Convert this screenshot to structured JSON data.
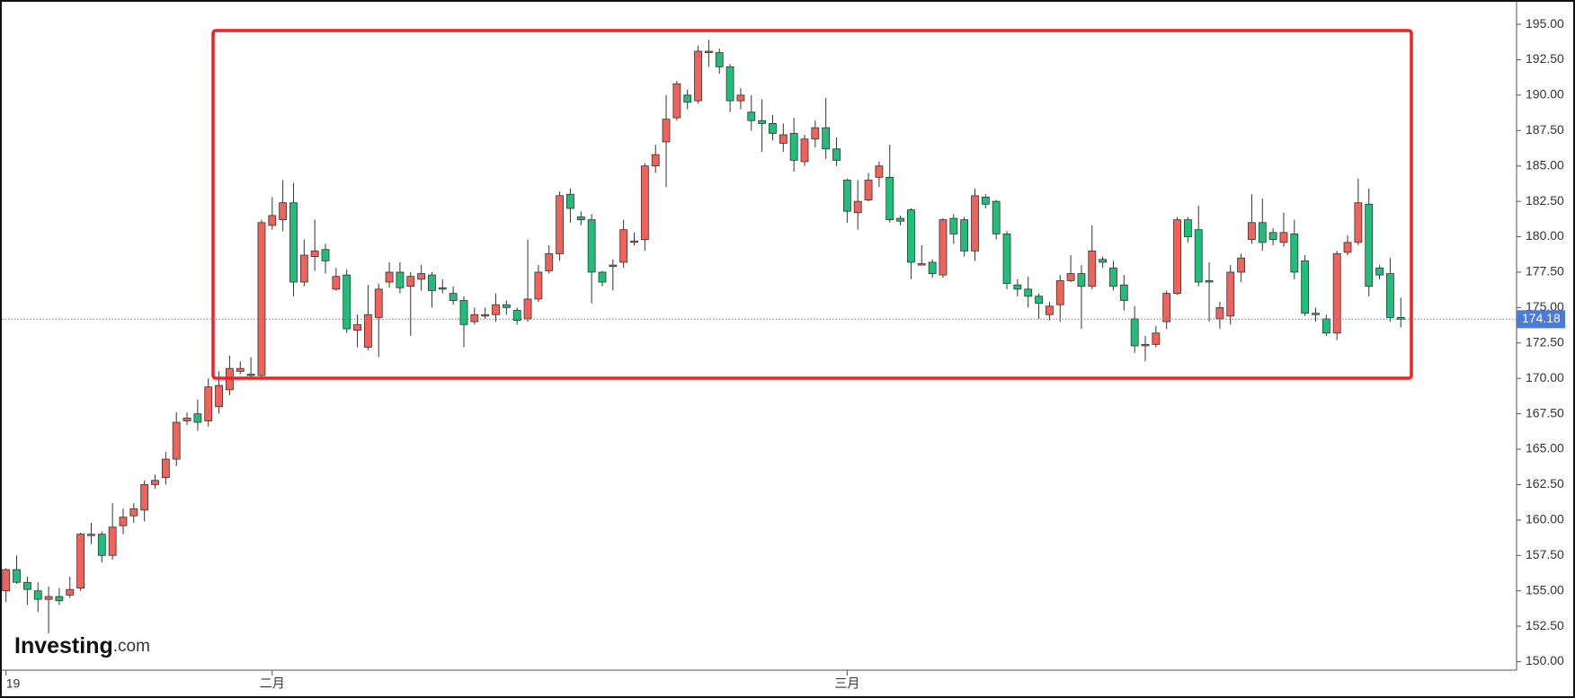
{
  "chart_data": {
    "type": "candlestick",
    "categories": [
      "19",
      null,
      null,
      null,
      null,
      null,
      null,
      null,
      null,
      null,
      null,
      null,
      null,
      null,
      null,
      null,
      null,
      null,
      null,
      null,
      null,
      null,
      null,
      null,
      null,
      "二月",
      null,
      null,
      null,
      null,
      null,
      null,
      null,
      null,
      null,
      null,
      null,
      null,
      null,
      null,
      null,
      null,
      null,
      null,
      null,
      null,
      null,
      null,
      null,
      null,
      null,
      null,
      null,
      null,
      null,
      null,
      null,
      null,
      null,
      null,
      null,
      null,
      null,
      null,
      null,
      null,
      null,
      null,
      null,
      null,
      null,
      null,
      null,
      null,
      null,
      null,
      null,
      null,
      null,
      "三月",
      null,
      null,
      null,
      null,
      null,
      null,
      null,
      null,
      null,
      null,
      null,
      null,
      null,
      null,
      null,
      null,
      null,
      null,
      null,
      null,
      null,
      null,
      null,
      null,
      null,
      null,
      null,
      null,
      null,
      null,
      null,
      null,
      null,
      null,
      null,
      null,
      null,
      null,
      null,
      null,
      null,
      null,
      null,
      null,
      null,
      null,
      null,
      null,
      null,
      null,
      null,
      null
    ],
    "open": [
      155.0,
      156.5,
      155.6,
      155,
      154.4,
      154.6,
      154.7,
      155.2,
      158.9,
      159,
      157.5,
      159.6,
      160.3,
      160.7,
      162.5,
      163,
      164.3,
      167,
      167.5,
      167,
      168,
      169.2,
      170.5,
      170.3,
      170.2,
      180.8,
      181.2,
      182.4,
      176.8,
      178.6,
      179.1,
      176.3,
      177.3,
      173.4,
      172.2,
      174.3,
      176.8,
      177.5,
      176.5,
      177,
      177.3,
      176.4,
      176,
      175.5,
      174,
      174.4,
      174.5,
      175.2,
      174.8,
      174.2,
      175.6,
      177.6,
      178.8,
      183,
      181.4,
      181.2,
      177.5,
      177.9,
      178.2,
      179.6,
      179.8,
      185,
      186.7,
      188.4,
      190,
      189.6,
      193,
      193,
      192,
      189.6,
      188.8,
      188.2,
      188,
      186.6,
      187.3,
      185.3,
      186.9,
      187.7,
      186.2,
      184,
      181.7,
      182.6,
      184.2,
      184.2,
      181.3,
      181.9,
      178,
      178.2,
      177.3,
      181.3,
      181.2,
      179,
      182.8,
      182.5,
      180.2,
      176.6,
      176.3,
      175.8,
      174.5,
      175.2,
      176.9,
      177.4,
      176.5,
      178.4,
      177.8,
      176.6,
      174.2,
      172.3,
      172.4,
      174,
      176,
      181.2,
      180.5,
      176.9,
      174.2,
      174.4,
      177.5,
      179.8,
      181,
      180.3,
      179.6,
      180.2,
      178.3,
      174.5,
      174.2,
      173.2,
      178.9,
      179.6,
      182.3,
      177.8,
      177.4,
      174.3
    ],
    "high": [
      156.6,
      157.5,
      156,
      155.6,
      155.3,
      155.2,
      156,
      159.1,
      159.8,
      159.2,
      161.2,
      160.8,
      161.2,
      162.8,
      163.2,
      164.8,
      167.6,
      167.6,
      168.5,
      170,
      170.5,
      171.6,
      171.2,
      171.5,
      181.2,
      182.8,
      184,
      183.8,
      179.8,
      181.2,
      179.5,
      177.8,
      177.7,
      174.5,
      176.6,
      176.7,
      178.2,
      178.2,
      177.5,
      178,
      177.5,
      177,
      176.5,
      175.8,
      175,
      175,
      176,
      175.5,
      175,
      179.8,
      178,
      179.4,
      183.2,
      183.4,
      181.8,
      181.6,
      177.6,
      178.4,
      181.2,
      180.3,
      185.2,
      186.5,
      190,
      191,
      190.4,
      193.5,
      193.9,
      193.3,
      192.2,
      190.5,
      190,
      189.7,
      188.6,
      188,
      188.4,
      187.2,
      188.2,
      189.8,
      187,
      184.1,
      184,
      184.5,
      185.3,
      186.5,
      181.5,
      182,
      179.4,
      178.4,
      181.3,
      181.6,
      181.4,
      183.4,
      183,
      182.6,
      180.4,
      177,
      177.2,
      176,
      175.4,
      177.3,
      178.7,
      178,
      180.8,
      178.6,
      178.3,
      177.3,
      175.1,
      173,
      173.7,
      176.2,
      181.4,
      181.4,
      182.2,
      178.2,
      175.4,
      178,
      178.8,
      183,
      182.7,
      180.6,
      181.7,
      181.2,
      178.7,
      175,
      174.5,
      179,
      180.1,
      184.1,
      183.4,
      178,
      178.5,
      175.7
    ],
    "low": [
      154.2,
      155.5,
      154,
      153.5,
      152.0,
      154.0,
      154.5,
      155.0,
      158.3,
      157,
      157.2,
      159,
      159.8,
      159.9,
      162.2,
      162.5,
      163.8,
      166.7,
      166.3,
      166.6,
      167.5,
      168.8,
      170.3,
      170,
      170.1,
      180.5,
      180.4,
      175.8,
      176.5,
      177.6,
      177.4,
      176.2,
      173.2,
      172.2,
      172,
      171.5,
      176.4,
      176,
      173,
      176.2,
      175,
      176,
      175.2,
      172.2,
      173.8,
      174.2,
      174,
      174.5,
      173.8,
      174,
      175.4,
      177.4,
      178.3,
      181,
      180.8,
      175.3,
      176.5,
      176.2,
      177.8,
      179.4,
      179,
      184.5,
      183.5,
      188.2,
      189,
      189.4,
      192,
      191.5,
      188.8,
      189,
      187.5,
      186,
      186.8,
      186,
      184.6,
      185,
      186.3,
      185.5,
      185,
      181,
      180.5,
      182.5,
      183.5,
      181,
      180.8,
      177,
      178,
      177.1,
      177.1,
      179.5,
      178.6,
      178.3,
      182,
      179.8,
      176.3,
      175.8,
      175,
      174.2,
      174.1,
      174,
      176.8,
      173.5,
      176.3,
      177.8,
      176.2,
      174.8,
      171.8,
      171.2,
      172.2,
      173.5,
      175.9,
      179.6,
      176.5,
      174,
      173.5,
      173.8,
      176.8,
      179.5,
      179,
      179.4,
      179.3,
      177,
      174.4,
      174,
      173,
      172.7,
      178.7,
      179.4,
      175.8,
      177,
      174,
      173.6
    ],
    "close": [
      156.5,
      155.6,
      155.1,
      154.4,
      154.6,
      154.3,
      155.1,
      159.0,
      159,
      157.5,
      159.5,
      160.2,
      160.8,
      162.5,
      162.8,
      164.3,
      166.9,
      167.2,
      166.9,
      169.4,
      169.5,
      170.7,
      170.7,
      170.2,
      181,
      181.5,
      182.4,
      176.8,
      178.7,
      179,
      178.3,
      177.2,
      173.5,
      173.8,
      174.5,
      176.3,
      177.5,
      176.4,
      177.2,
      177.4,
      176.2,
      176.3,
      175.5,
      173.8,
      174.5,
      174.5,
      175.2,
      175,
      174.1,
      175.6,
      177.5,
      178.8,
      182.9,
      182,
      181.2,
      177.5,
      176.8,
      178,
      180.5,
      179.7,
      185,
      185.8,
      188.3,
      190.8,
      189.5,
      193.1,
      193.1,
      192,
      189.6,
      190,
      188.2,
      188,
      187.3,
      187.2,
      185.4,
      186.9,
      187.7,
      186.2,
      185.4,
      181.8,
      182.5,
      184,
      185,
      181.2,
      181.1,
      178.2,
      178.1,
      177.4,
      181.2,
      180.2,
      179,
      182.9,
      182.3,
      180.2,
      176.7,
      176.3,
      175.8,
      175.3,
      175.1,
      176.9,
      177.4,
      176.5,
      179,
      178.2,
      176.5,
      175.5,
      172.3,
      172.4,
      173.2,
      176,
      181.2,
      180,
      176.8,
      176.8,
      175,
      177.5,
      178.5,
      181,
      179.6,
      179.8,
      180.3,
      177.5,
      174.6,
      174.6,
      173.2,
      178.8,
      179.6,
      182.4,
      176.5,
      177.3,
      174.3,
      174.18
    ],
    "up_color": "#f0625a",
    "down_color": "#1fbf7a",
    "last_price": 174.18,
    "last_price_color": "#4a7bd8",
    "ylim": [
      149.4,
      196.5
    ],
    "yticks": [
      {
        "value": 150,
        "label": "150.00"
      },
      {
        "value": 152.5,
        "label": "152.50"
      },
      {
        "value": 155,
        "label": "155.00"
      },
      {
        "value": 157.5,
        "label": "157.50"
      },
      {
        "value": 160,
        "label": "160.00"
      },
      {
        "value": 162.5,
        "label": "162.50"
      },
      {
        "value": 165,
        "label": "165.00"
      },
      {
        "value": 167.5,
        "label": "167.50"
      },
      {
        "value": 170,
        "label": "170.00"
      },
      {
        "value": 172.5,
        "label": "172.50"
      },
      {
        "value": 175,
        "label": "175.00"
      },
      {
        "value": 177.5,
        "label": "177.50"
      },
      {
        "value": 180,
        "label": "180.00"
      },
      {
        "value": 182.5,
        "label": "182.50"
      },
      {
        "value": 185,
        "label": "185.00"
      },
      {
        "value": 187.5,
        "label": "187.50"
      },
      {
        "value": 190,
        "label": "190.00"
      },
      {
        "value": 192.5,
        "label": "192.50"
      },
      {
        "value": 195,
        "label": "195.00"
      }
    ],
    "grid": false
  },
  "logo": {
    "name": "Investing",
    "suffix": ".com"
  }
}
